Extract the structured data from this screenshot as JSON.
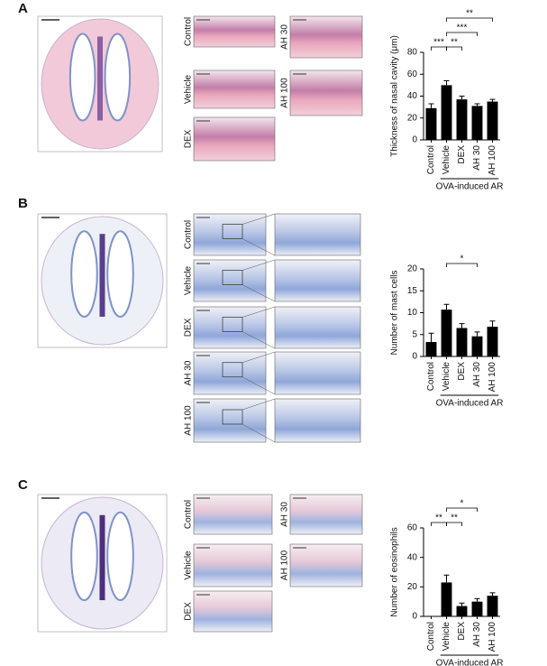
{
  "panels": [
    {
      "label": "A",
      "images": [
        "Control",
        "Vehicle",
        "DEX",
        "AH 30",
        "AH 100"
      ]
    },
    {
      "label": "B",
      "images": [
        "Control",
        "Vehicle",
        "DEX",
        "AH 30",
        "AH 100"
      ]
    },
    {
      "label": "C",
      "images": [
        "Control",
        "Vehicle",
        "DEX",
        "AH 30",
        "AH 100"
      ]
    }
  ],
  "chart_data": [
    {
      "type": "bar",
      "ylabel": "Thickness of nasal cavity (μm)",
      "color": "#000000",
      "categories": [
        "Control",
        "Vehicle",
        "DEX",
        "AH 30",
        "AH 100"
      ],
      "values": [
        29,
        50,
        37,
        31,
        35
      ],
      "errors": [
        4,
        4,
        3,
        2,
        2
      ],
      "ylim": [
        0,
        80
      ],
      "yticks": [
        0,
        20,
        40,
        60,
        80
      ],
      "group_label": "OVA-induced AR",
      "annotations": [
        {
          "label": "***",
          "from": "Control",
          "to": "Vehicle"
        },
        {
          "label": "**",
          "from": "Vehicle",
          "to": "DEX"
        },
        {
          "label": "***",
          "from": "Vehicle",
          "to": "AH 30"
        },
        {
          "label": "**",
          "from": "Vehicle",
          "to": "AH 100"
        }
      ]
    },
    {
      "type": "bar",
      "ylabel": "Number of mast cells",
      "color": "#000000",
      "categories": [
        "Control",
        "Vehicle",
        "DEX",
        "AH 30",
        "AH 100"
      ],
      "values": [
        3.3,
        10.7,
        6.5,
        4.6,
        6.8
      ],
      "errors": [
        2,
        1.2,
        1,
        1,
        1.3
      ],
      "ylim": [
        0,
        20
      ],
      "yticks": [
        0,
        5,
        10,
        15,
        20
      ],
      "group_label": "OVA-induced AR",
      "annotations": [
        {
          "label": "*",
          "from": "Vehicle",
          "to": "AH 30"
        }
      ]
    },
    {
      "type": "bar",
      "ylabel": "Number of eosinophils",
      "color": "#000000",
      "categories": [
        "Control",
        "Vehicle",
        "DEX",
        "AH 30",
        "AH 100"
      ],
      "values": [
        0,
        23,
        7,
        10,
        14
      ],
      "errors": [
        0,
        5,
        2,
        2,
        2
      ],
      "ylim": [
        0,
        60
      ],
      "yticks": [
        0,
        20,
        40,
        60
      ],
      "group_label": "OVA-induced AR",
      "annotations": [
        {
          "label": "**",
          "from": "Control",
          "to": "Vehicle"
        },
        {
          "label": "**",
          "from": "Vehicle",
          "to": "DEX"
        },
        {
          "label": "*",
          "from": "Vehicle",
          "to": "AH 30"
        }
      ]
    }
  ]
}
